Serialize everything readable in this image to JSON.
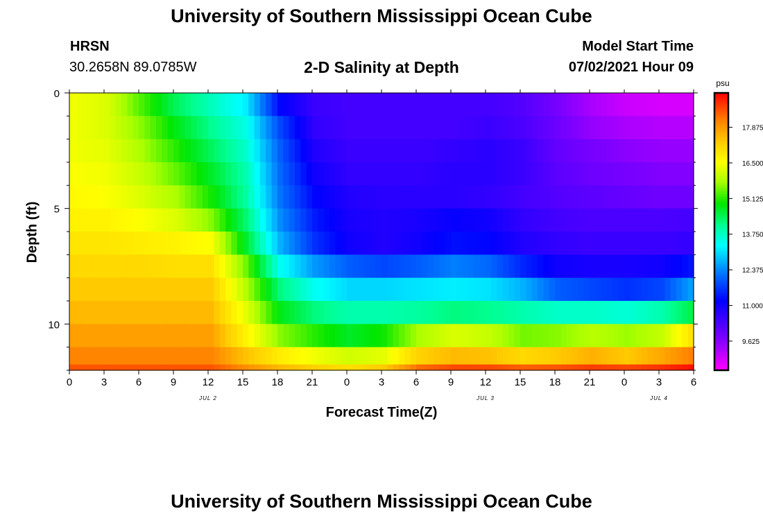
{
  "header": {
    "title_top": "University of Southern Mississippi Ocean Cube",
    "title_bottom": "University of Southern Mississippi Ocean Cube",
    "station": "HRSN",
    "coords": "30.2658N  89.0785W",
    "subtitle": "2-D Salinity at Depth",
    "model_start_label": "Model Start Time",
    "model_start_value": "07/02/2021 Hour 09"
  },
  "chart_data": {
    "type": "heatmap",
    "title": "2-D Salinity at Depth",
    "xlabel": "Forecast Time(Z)",
    "ylabel": "Depth (ft)",
    "x_tick_labels": [
      "0",
      "3",
      "6",
      "9",
      "12",
      "15",
      "18",
      "21",
      "0",
      "3",
      "6",
      "9",
      "12",
      "15",
      "18",
      "21",
      "0",
      "3",
      "6"
    ],
    "x_range_hours": [
      0,
      54
    ],
    "date_labels": [
      {
        "label": "JUL 2",
        "hour": 12
      },
      {
        "label": "JUL 3",
        "hour": 36
      },
      {
        "label": "JUL 4",
        "hour": 51
      }
    ],
    "y_ticks": [
      0,
      5,
      10
    ],
    "y_range": [
      0,
      12
    ],
    "colorbar": {
      "unit": "psu",
      "min": 8.5,
      "max": 19.2,
      "tick_labels": [
        "17.875",
        "16.500",
        "15.125",
        "13.750",
        "12.375",
        "11.000",
        "9.625"
      ],
      "tick_values": [
        17.875,
        16.5,
        15.125,
        13.75,
        12.375,
        11.0,
        9.625
      ]
    },
    "time_hours": [
      0,
      3,
      6,
      9,
      12,
      15,
      18,
      21,
      24,
      27,
      30,
      33,
      36,
      39,
      42,
      45,
      48,
      51,
      54
    ],
    "layers": [
      {
        "depth": 0.5,
        "values": [
          16.4,
          16.2,
          15.3,
          14.4,
          13.8,
          13.2,
          11.2,
          10.5,
          10.4,
          10.4,
          10.4,
          10.4,
          10.4,
          10.2,
          9.8,
          9.3,
          9.0,
          8.9,
          8.9
        ]
      },
      {
        "depth": 1.5,
        "values": [
          16.4,
          16.2,
          15.6,
          14.8,
          14.1,
          13.5,
          11.8,
          10.6,
          10.4,
          10.4,
          10.4,
          10.4,
          10.5,
          10.3,
          9.9,
          9.5,
          9.3,
          9.2,
          9.2
        ]
      },
      {
        "depth": 2.5,
        "values": [
          16.4,
          16.3,
          15.8,
          15.1,
          14.4,
          13.7,
          12.0,
          10.8,
          10.5,
          10.5,
          10.5,
          10.6,
          10.7,
          10.5,
          10.0,
          9.8,
          9.6,
          9.5,
          9.5
        ]
      },
      {
        "depth": 3.5,
        "values": [
          16.5,
          16.4,
          16.0,
          15.4,
          14.7,
          13.9,
          12.1,
          11.0,
          10.6,
          10.6,
          10.6,
          10.7,
          10.7,
          10.5,
          10.1,
          9.9,
          9.8,
          9.7,
          9.7
        ]
      },
      {
        "depth": 4.5,
        "values": [
          16.6,
          16.5,
          16.2,
          15.8,
          15.0,
          14.0,
          12.2,
          11.2,
          10.8,
          10.7,
          10.7,
          10.7,
          10.6,
          10.4,
          10.2,
          10.1,
          10.0,
          9.9,
          9.9
        ]
      },
      {
        "depth": 5.5,
        "values": [
          16.7,
          16.7,
          16.5,
          16.2,
          15.6,
          14.3,
          12.4,
          11.4,
          10.9,
          10.8,
          10.9,
          11.1,
          11.0,
          10.6,
          10.4,
          10.3,
          10.3,
          10.3,
          10.4
        ]
      },
      {
        "depth": 6.5,
        "values": [
          16.9,
          16.9,
          16.8,
          16.7,
          16.5,
          14.7,
          12.7,
          11.6,
          11.0,
          10.8,
          11.0,
          11.3,
          11.2,
          10.8,
          10.6,
          10.5,
          10.5,
          10.5,
          10.6
        ]
      },
      {
        "depth": 7.5,
        "values": [
          17.1,
          17.1,
          17.1,
          17.0,
          17.0,
          15.5,
          13.4,
          12.5,
          12.0,
          11.8,
          12.0,
          12.3,
          12.1,
          11.5,
          11.0,
          10.9,
          10.9,
          11.0,
          11.4
        ]
      },
      {
        "depth": 8.5,
        "values": [
          17.3,
          17.3,
          17.3,
          17.3,
          17.3,
          15.9,
          14.2,
          13.4,
          13.0,
          13.0,
          13.1,
          13.2,
          13.1,
          12.7,
          12.0,
          11.8,
          11.6,
          11.8,
          12.7
        ]
      },
      {
        "depth": 9.5,
        "values": [
          17.5,
          17.5,
          17.5,
          17.5,
          17.5,
          16.3,
          14.8,
          14.2,
          13.9,
          13.9,
          14.0,
          14.2,
          14.1,
          13.9,
          13.7,
          13.7,
          13.6,
          13.9,
          14.6
        ]
      },
      {
        "depth": 10.5,
        "values": [
          17.8,
          17.8,
          17.8,
          17.8,
          17.8,
          16.7,
          15.6,
          15.1,
          14.7,
          15.0,
          15.8,
          16.2,
          16.0,
          15.5,
          15.6,
          15.9,
          15.7,
          16.0,
          17.1
        ]
      },
      {
        "depth": 11.5,
        "values": [
          18.1,
          18.1,
          18.1,
          18.1,
          18.1,
          17.4,
          16.8,
          16.4,
          16.1,
          16.3,
          17.2,
          17.5,
          17.4,
          17.1,
          17.3,
          17.6,
          17.3,
          17.7,
          18.2
        ]
      },
      {
        "depth": 12.0,
        "values": [
          18.5,
          18.5,
          18.5,
          18.5,
          18.5,
          18.0,
          17.5,
          17.2,
          17.0,
          17.3,
          18.3,
          18.6,
          18.6,
          18.4,
          18.5,
          18.7,
          18.6,
          18.8,
          19.1
        ]
      }
    ]
  }
}
